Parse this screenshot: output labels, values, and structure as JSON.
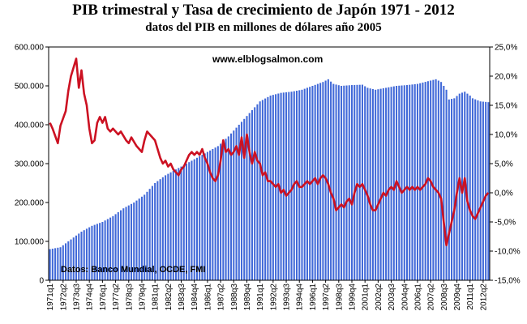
{
  "chart_data": {
    "type": "bar+line",
    "title": "PIB trimestral y Tasa de crecimiento de Japón 1971 - 2012",
    "subtitle": "datos del PIB en millones de dólares año 2005",
    "watermark": "www.elblogsalmon.com",
    "source": "Datos: Banco Mundial, OCDE, FMI",
    "x_tick_labels": [
      "1971q1",
      "1972q2",
      "1973q3",
      "1974q4",
      "1976q1",
      "1977q2",
      "1978q3",
      "1979q4",
      "1981q1",
      "1982q2",
      "1983q3",
      "1984q4",
      "1986q1",
      "1987q2",
      "1988q3",
      "1989q4",
      "1991q1",
      "1992q2",
      "1993q3",
      "1994q4",
      "1996q1",
      "1997q2",
      "1998q3",
      "1999q4",
      "2001q1",
      "2002q2",
      "2003q3",
      "2004q4",
      "2006q1",
      "2007q2",
      "2008q3",
      "2009q4",
      "2011q1",
      "2012q2"
    ],
    "left_axis": {
      "min": 0,
      "max": 600000,
      "step": 100000,
      "tick_labels": [
        "0",
        "100.000",
        "200.000",
        "300.000",
        "400.000",
        "500.000",
        "600.000"
      ]
    },
    "right_axis": {
      "min": -15,
      "max": 25,
      "step": 5,
      "tick_labels": [
        "-15,0%",
        "-10,0%",
        "-5,0%",
        "0,0%",
        "5,0%",
        "10,0%",
        "15,0%",
        "20,0%",
        "25,0%"
      ]
    },
    "quarters_start": "1971q1",
    "quarters_end": "2012q4",
    "series": [
      {
        "kind": "bar",
        "axis": "left",
        "color": "#4169d8",
        "anchors": [
          [
            "1971q1",
            80000
          ],
          [
            "1972q1",
            85000
          ],
          [
            "1973q1",
            105000
          ],
          [
            "1974q1",
            125000
          ],
          [
            "1975q1",
            140000
          ],
          [
            "1976q1",
            150000
          ],
          [
            "1977q1",
            165000
          ],
          [
            "1978q1",
            185000
          ],
          [
            "1979q1",
            200000
          ],
          [
            "1980q1",
            220000
          ],
          [
            "1981q1",
            250000
          ],
          [
            "1982q1",
            270000
          ],
          [
            "1983q1",
            285000
          ],
          [
            "1984q1",
            300000
          ],
          [
            "1985q1",
            315000
          ],
          [
            "1986q1",
            330000
          ],
          [
            "1987q1",
            345000
          ],
          [
            "1988q1",
            370000
          ],
          [
            "1989q1",
            400000
          ],
          [
            "1990q1",
            430000
          ],
          [
            "1991q1",
            460000
          ],
          [
            "1992q1",
            475000
          ],
          [
            "1993q1",
            482000
          ],
          [
            "1994q1",
            485000
          ],
          [
            "1995q1",
            490000
          ],
          [
            "1996q1",
            500000
          ],
          [
            "1997q1",
            510000
          ],
          [
            "1997q3",
            517000
          ],
          [
            "1998q1",
            505000
          ],
          [
            "1998q4",
            500000
          ],
          [
            "1999q4",
            502000
          ],
          [
            "2000q4",
            503000
          ],
          [
            "2001q2",
            495000
          ],
          [
            "2002q1",
            490000
          ],
          [
            "2003q1",
            495000
          ],
          [
            "2004q1",
            500000
          ],
          [
            "2005q1",
            502000
          ],
          [
            "2006q1",
            505000
          ],
          [
            "2007q1",
            512000
          ],
          [
            "2007q4",
            517000
          ],
          [
            "2008q2",
            510000
          ],
          [
            "2008q4",
            490000
          ],
          [
            "2009q1",
            465000
          ],
          [
            "2009q3",
            468000
          ],
          [
            "2010q1",
            480000
          ],
          [
            "2010q3",
            485000
          ],
          [
            "2011q1",
            475000
          ],
          [
            "2011q2",
            468000
          ],
          [
            "2012q1",
            460000
          ],
          [
            "2012q4",
            458000
          ]
        ]
      },
      {
        "kind": "line",
        "axis": "right",
        "color": "#cc1122",
        "anchors": [
          [
            "1971q1",
            12
          ],
          [
            "1971q2",
            11
          ],
          [
            "1971q4",
            8.5
          ],
          [
            "1972q1",
            11.5
          ],
          [
            "1972q3",
            14
          ],
          [
            "1972q4",
            17.5
          ],
          [
            "1973q1",
            20
          ],
          [
            "1973q2",
            21.5
          ],
          [
            "1973q3",
            23
          ],
          [
            "1973q4",
            18
          ],
          [
            "1974q1",
            21
          ],
          [
            "1974q2",
            17
          ],
          [
            "1974q3",
            15
          ],
          [
            "1974q4",
            11
          ],
          [
            "1975q1",
            8.5
          ],
          [
            "1975q2",
            9
          ],
          [
            "1975q3",
            12
          ],
          [
            "1975q4",
            13
          ],
          [
            "1976q1",
            12
          ],
          [
            "1976q2",
            13
          ],
          [
            "1976q3",
            11
          ],
          [
            "1976q4",
            10.5
          ],
          [
            "1977q1",
            11
          ],
          [
            "1977q3",
            10
          ],
          [
            "1977q4",
            10.5
          ],
          [
            "1978q2",
            9
          ],
          [
            "1978q3",
            8.5
          ],
          [
            "1978q4",
            9.5
          ],
          [
            "1979q2",
            8
          ],
          [
            "1979q3",
            7.5
          ],
          [
            "1979q4",
            7
          ],
          [
            "1980q1",
            9
          ],
          [
            "1980q2",
            10.5
          ],
          [
            "1980q4",
            9.5
          ],
          [
            "1981q1",
            9
          ],
          [
            "1981q3",
            6
          ],
          [
            "1981q4",
            5
          ],
          [
            "1982q1",
            5.5
          ],
          [
            "1982q2",
            4.5
          ],
          [
            "1982q3",
            5
          ],
          [
            "1982q4",
            4
          ],
          [
            "1983q1",
            3.5
          ],
          [
            "1983q2",
            3
          ],
          [
            "1983q3",
            4
          ],
          [
            "1983q4",
            4.5
          ],
          [
            "1984q1",
            5.5
          ],
          [
            "1984q2",
            6.5
          ],
          [
            "1984q3",
            7
          ],
          [
            "1984q4",
            6.5
          ],
          [
            "1985q1",
            7
          ],
          [
            "1985q2",
            6.5
          ],
          [
            "1985q3",
            7.5
          ],
          [
            "1985q4",
            6
          ],
          [
            "1986q1",
            5
          ],
          [
            "1986q2",
            3.5
          ],
          [
            "1986q3",
            2.5
          ],
          [
            "1986q4",
            2
          ],
          [
            "1987q1",
            3
          ],
          [
            "1987q2",
            5.5
          ],
          [
            "1987q3",
            9
          ],
          [
            "1987q4",
            7
          ],
          [
            "1988q1",
            7.5
          ],
          [
            "1988q2",
            6.5
          ],
          [
            "1988q3",
            7
          ],
          [
            "1988q4",
            8
          ],
          [
            "1989q1",
            6.5
          ],
          [
            "1989q2",
            9.5
          ],
          [
            "1989q3",
            6
          ],
          [
            "1989q4",
            10
          ],
          [
            "1990q1",
            7
          ],
          [
            "1990q2",
            5
          ],
          [
            "1990q3",
            7
          ],
          [
            "1990q4",
            5.5
          ],
          [
            "1991q1",
            5
          ],
          [
            "1991q2",
            3
          ],
          [
            "1991q3",
            3.5
          ],
          [
            "1991q4",
            2
          ],
          [
            "1992q1",
            2
          ],
          [
            "1992q2",
            1.5
          ],
          [
            "1992q3",
            1
          ],
          [
            "1992q4",
            1.5
          ],
          [
            "1993q1",
            0
          ],
          [
            "1993q2",
            0.5
          ],
          [
            "1993q3",
            -0.5
          ],
          [
            "1993q4",
            0
          ],
          [
            "1994q1",
            0.5
          ],
          [
            "1994q2",
            1.5
          ],
          [
            "1994q3",
            2
          ],
          [
            "1994q4",
            1
          ],
          [
            "1995q1",
            1
          ],
          [
            "1995q2",
            1.5
          ],
          [
            "1995q3",
            2
          ],
          [
            "1995q4",
            1.5
          ],
          [
            "1996q1",
            2
          ],
          [
            "1996q2",
            2.5
          ],
          [
            "1996q3",
            1.5
          ],
          [
            "1996q4",
            2.5
          ],
          [
            "1997q1",
            3
          ],
          [
            "1997q2",
            2.5
          ],
          [
            "1997q3",
            1.5
          ],
          [
            "1997q4",
            0
          ],
          [
            "1998q1",
            -1
          ],
          [
            "1998q2",
            -3
          ],
          [
            "1998q3",
            -2.5
          ],
          [
            "1998q4",
            -2
          ],
          [
            "1999q1",
            -2.5
          ],
          [
            "1999q2",
            -1.5
          ],
          [
            "1999q3",
            -1
          ],
          [
            "1999q4",
            -2
          ],
          [
            "2000q1",
            0
          ],
          [
            "2000q2",
            1.5
          ],
          [
            "2000q3",
            1
          ],
          [
            "2000q4",
            1.5
          ],
          [
            "2001q1",
            0.5
          ],
          [
            "2001q2",
            -0.5
          ],
          [
            "2001q3",
            -2
          ],
          [
            "2001q4",
            -3
          ],
          [
            "2002q1",
            -3
          ],
          [
            "2002q2",
            -2
          ],
          [
            "2002q3",
            -1
          ],
          [
            "2002q4",
            0
          ],
          [
            "2003q1",
            -0.5
          ],
          [
            "2003q2",
            0.5
          ],
          [
            "2003q3",
            1
          ],
          [
            "2003q4",
            0.5
          ],
          [
            "2004q1",
            2
          ],
          [
            "2004q2",
            1
          ],
          [
            "2004q3",
            0
          ],
          [
            "2004q4",
            0.5
          ],
          [
            "2005q1",
            1
          ],
          [
            "2005q2",
            0.5
          ],
          [
            "2005q3",
            1
          ],
          [
            "2005q4",
            0.5
          ],
          [
            "2006q1",
            1
          ],
          [
            "2006q2",
            0.5
          ],
          [
            "2006q3",
            1
          ],
          [
            "2006q4",
            1.5
          ],
          [
            "2007q1",
            2.5
          ],
          [
            "2007q2",
            2
          ],
          [
            "2007q3",
            1
          ],
          [
            "2007q4",
            0.5
          ],
          [
            "2008q1",
            0
          ],
          [
            "2008q2",
            -1
          ],
          [
            "2008q3",
            -5
          ],
          [
            "2008q4",
            -9
          ],
          [
            "2009q1",
            -7
          ],
          [
            "2009q2",
            -5
          ],
          [
            "2009q3",
            -3
          ],
          [
            "2009q4",
            0
          ],
          [
            "2010q1",
            2.5
          ],
          [
            "2010q2",
            0
          ],
          [
            "2010q3",
            2.5
          ],
          [
            "2010q4",
            -1.5
          ],
          [
            "2011q1",
            -3
          ],
          [
            "2011q2",
            -4
          ],
          [
            "2011q3",
            -4.5
          ],
          [
            "2011q4",
            -3.5
          ],
          [
            "2012q1",
            -2.5
          ],
          [
            "2012q2",
            -1.5
          ],
          [
            "2012q3",
            -0.5
          ],
          [
            "2012q4",
            0
          ]
        ]
      }
    ],
    "grid": false
  }
}
